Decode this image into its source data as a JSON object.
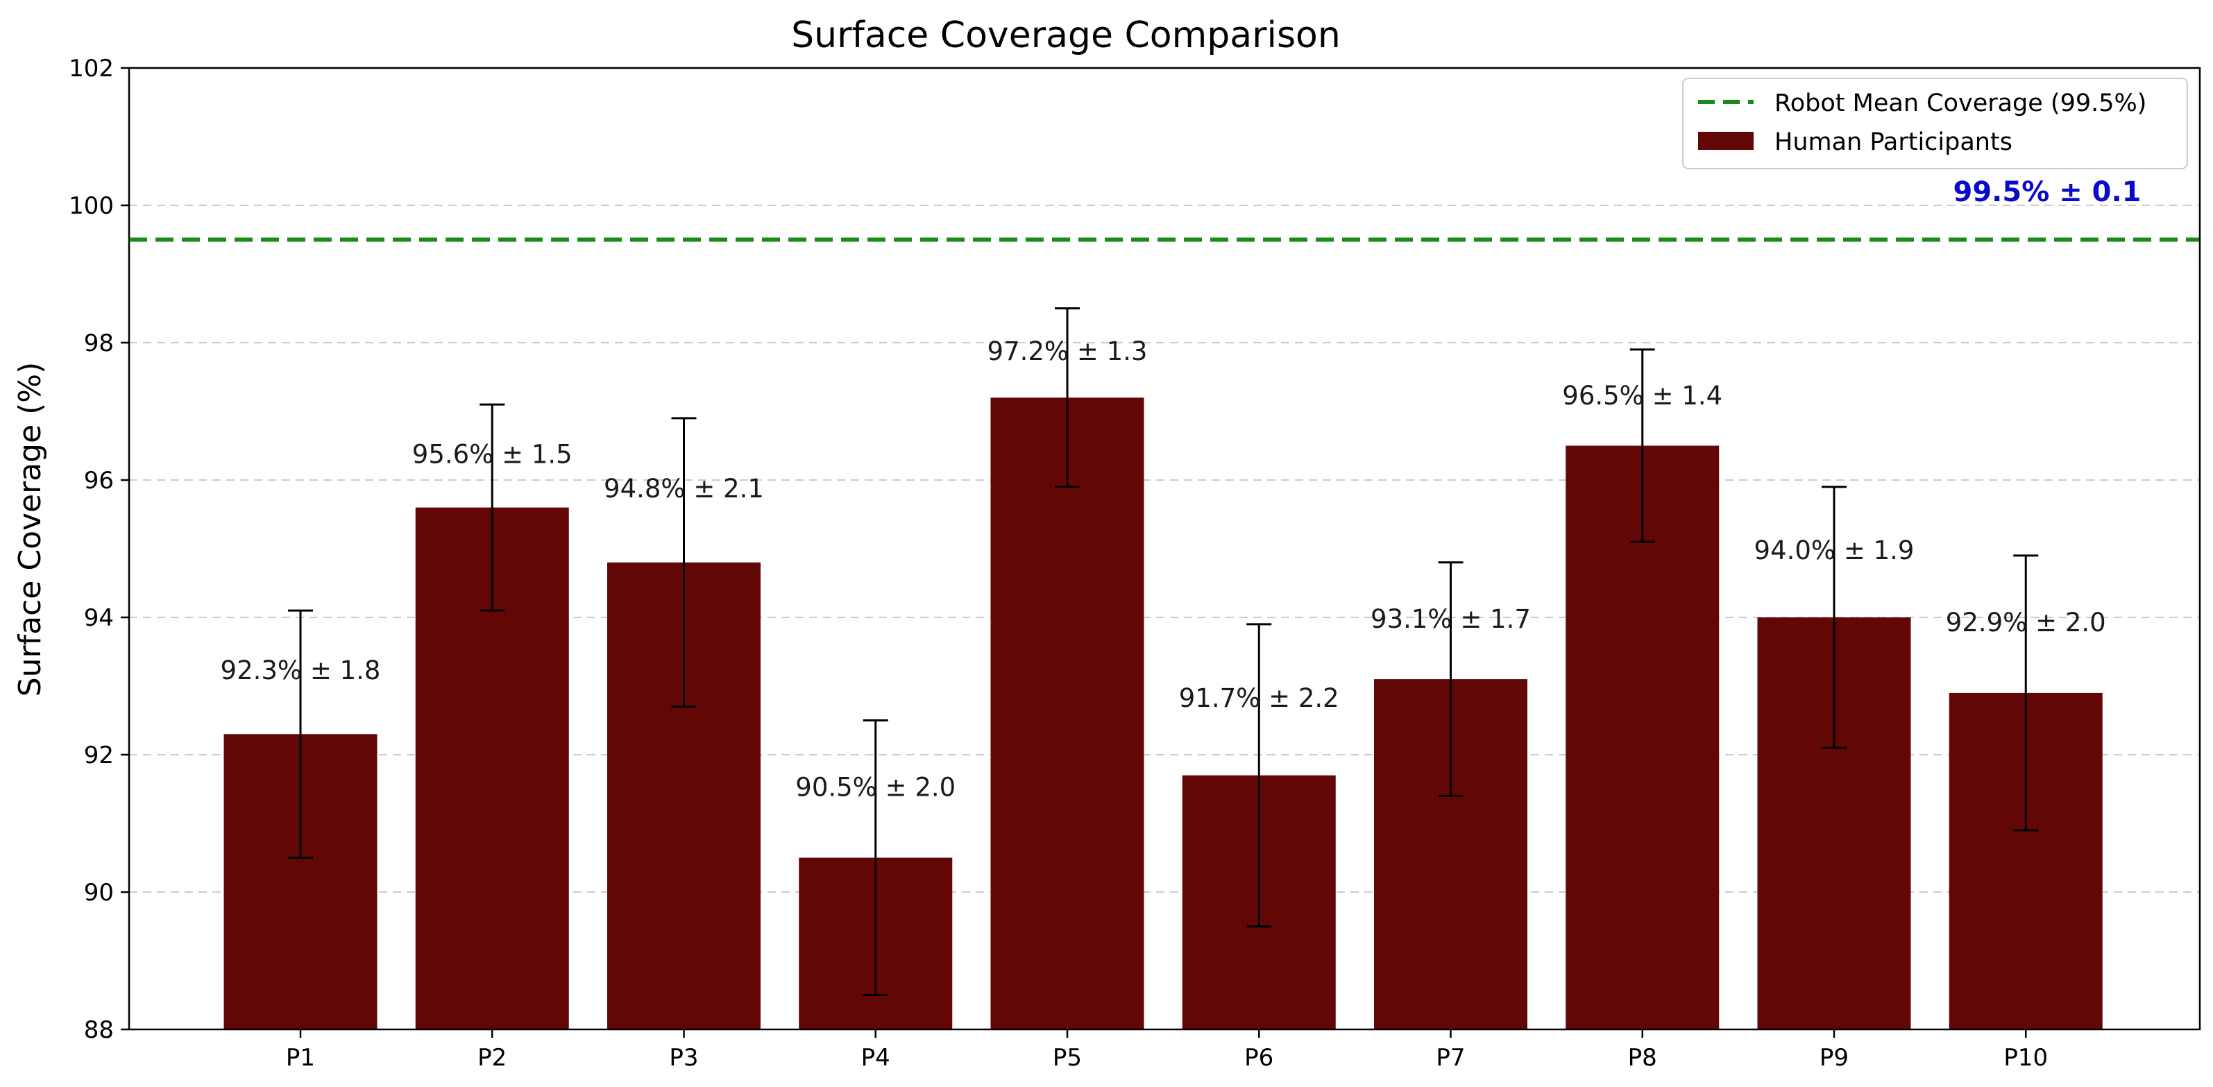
{
  "chart_data": {
    "type": "bar",
    "title": "Surface Coverage Comparison",
    "xlabel": "",
    "ylabel": "Surface Coverage (%)",
    "ylim": [
      88,
      102
    ],
    "yticks": [
      88,
      90,
      92,
      94,
      96,
      98,
      100,
      102
    ],
    "grid": "horizontal-dashed",
    "categories": [
      "P1",
      "P2",
      "P3",
      "P4",
      "P5",
      "P6",
      "P7",
      "P8",
      "P9",
      "P10"
    ],
    "series": [
      {
        "name": "Human Participants",
        "color": "#620606",
        "values": [
          92.3,
          95.6,
          94.8,
          90.5,
          97.2,
          91.7,
          93.1,
          96.5,
          94.0,
          92.9
        ],
        "errors": [
          1.8,
          1.5,
          2.1,
          2.0,
          1.3,
          2.2,
          1.7,
          1.4,
          1.9,
          2.0
        ],
        "labels": [
          "92.3% ± 1.8",
          "95.6% ± 1.5",
          "94.8% ± 2.1",
          "90.5% ± 2.0",
          "97.2% ± 1.3",
          "91.7% ± 2.2",
          "93.1% ± 1.7",
          "96.5% ± 1.4",
          "94.0% ± 1.9",
          "92.9% ± 2.0"
        ]
      }
    ],
    "reference_line": {
      "name": "Robot Mean Coverage (99.5%)",
      "value": 99.5,
      "color": "#1a8a1a",
      "style": "dashed",
      "annotation": "99.5% ± 0.1",
      "annotation_color": "#0a0acd"
    },
    "legend": {
      "placement": "top-right",
      "entries": [
        "Robot Mean Coverage (99.5%)",
        "Human Participants"
      ]
    }
  }
}
